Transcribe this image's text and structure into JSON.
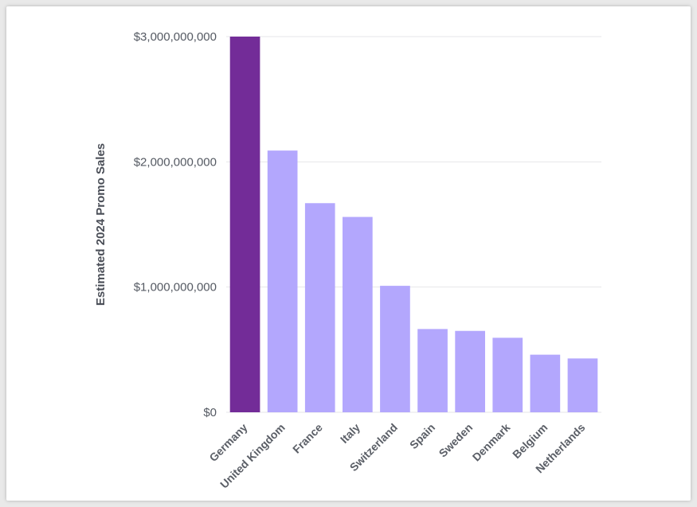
{
  "chart_data": {
    "type": "bar",
    "title": "",
    "xlabel": "",
    "ylabel": "Estimated 2024 Promo Sales",
    "ylim": [
      0,
      3000000000
    ],
    "yticks": [
      0,
      1000000000,
      2000000000,
      3000000000
    ],
    "ytick_labels": [
      "$0",
      "$1,000,000,000",
      "$2,000,000,000",
      "$3,000,000,000"
    ],
    "categories": [
      "Germany",
      "United Kingdom",
      "France",
      "Italy",
      "Switzerland",
      "Spain",
      "Sweden",
      "Denmark",
      "Belgium",
      "Netherlands"
    ],
    "values": [
      3000000000,
      2090000000,
      1670000000,
      1560000000,
      1010000000,
      665000000,
      650000000,
      595000000,
      460000000,
      430000000
    ],
    "highlight_index": 0,
    "grid": true,
    "colors": {
      "highlight": "#732c98",
      "bar": "#b3a7fd"
    }
  }
}
